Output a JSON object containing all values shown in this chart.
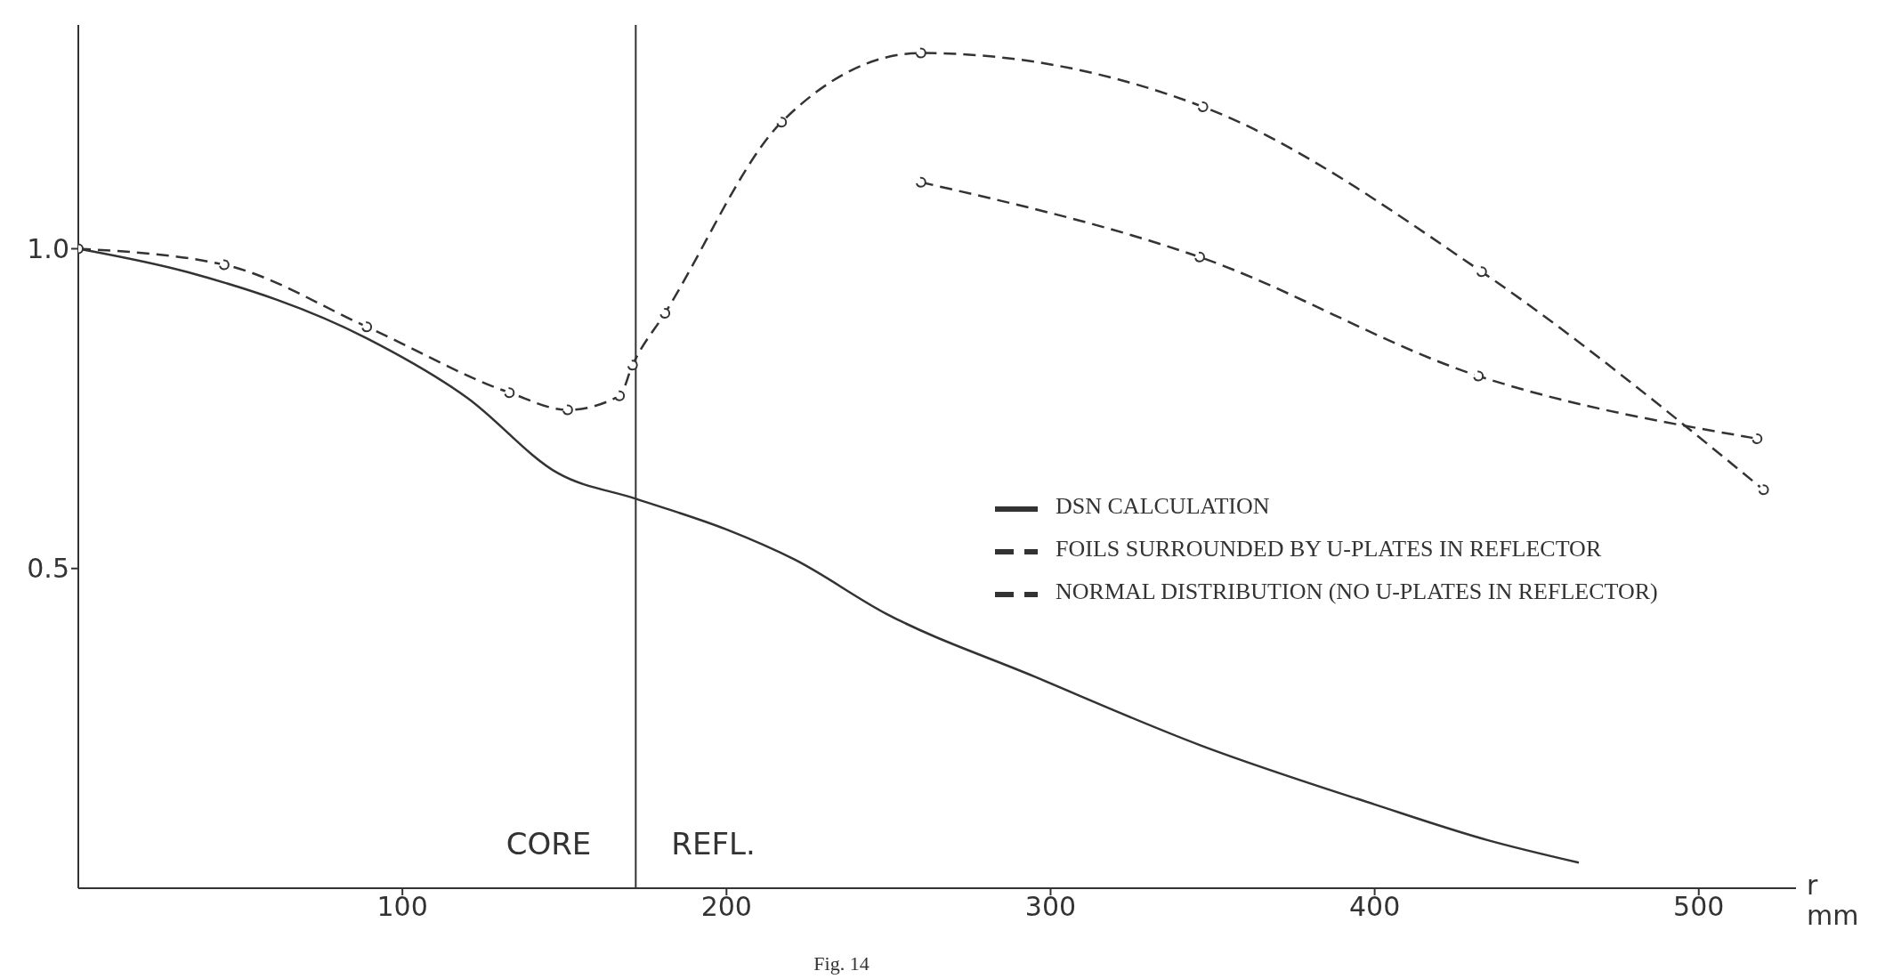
{
  "chart_data": {
    "type": "line",
    "xlabel": "r mm",
    "xlim": [
      0,
      530
    ],
    "ylim": [
      0,
      1.35
    ],
    "xticks": [
      100,
      200,
      300,
      400,
      500
    ],
    "yticks": [
      0.5,
      {
        "value": 1,
        "label": "1.0"
      }
    ],
    "grid": false,
    "legend": "right",
    "series": [
      {
        "name": "NORMAL DISTRIBUTION (NO U-PLATES IN REFLECTOR)",
        "color": "#333333",
        "line_style": "dashed",
        "marker": "circle",
        "x": [
          0,
          45,
          89,
          133,
          151,
          167,
          171,
          181,
          217,
          260,
          347,
          433,
          520
        ],
        "values": [
          1.0,
          0.975,
          0.878,
          0.775,
          0.748,
          0.77,
          0.818,
          0.899,
          1.198,
          1.306,
          1.222,
          0.964,
          0.623
        ]
      },
      {
        "name": "FOILS SURROUNDED BY U-PLATES IN REFLECTOR",
        "color": "#333333",
        "line_style": "dashed",
        "marker": "circle",
        "x": [
          260,
          346,
          432,
          518
        ],
        "values": [
          1.104,
          0.987,
          0.801,
          0.703
        ]
      },
      {
        "name": "DSN CALCULATION",
        "color": "#333333",
        "line_style": "solid",
        "marker": "none",
        "x": [
          0,
          34,
          89,
          120,
          148,
          172,
          200,
          221,
          249,
          295,
          346,
          400,
          435,
          463
        ],
        "values": [
          1.0,
          0.963,
          0.86,
          0.767,
          0.649,
          0.609,
          0.561,
          0.514,
          0.43,
          0.331,
          0.224,
          0.131,
          0.075,
          0.04
        ]
      }
    ],
    "ref_lines": [
      {
        "axis": "x",
        "value": 172,
        "color": "#333333"
      }
    ],
    "annotations": [
      "CORE",
      "REFL.",
      "Fig. 14"
    ]
  }
}
